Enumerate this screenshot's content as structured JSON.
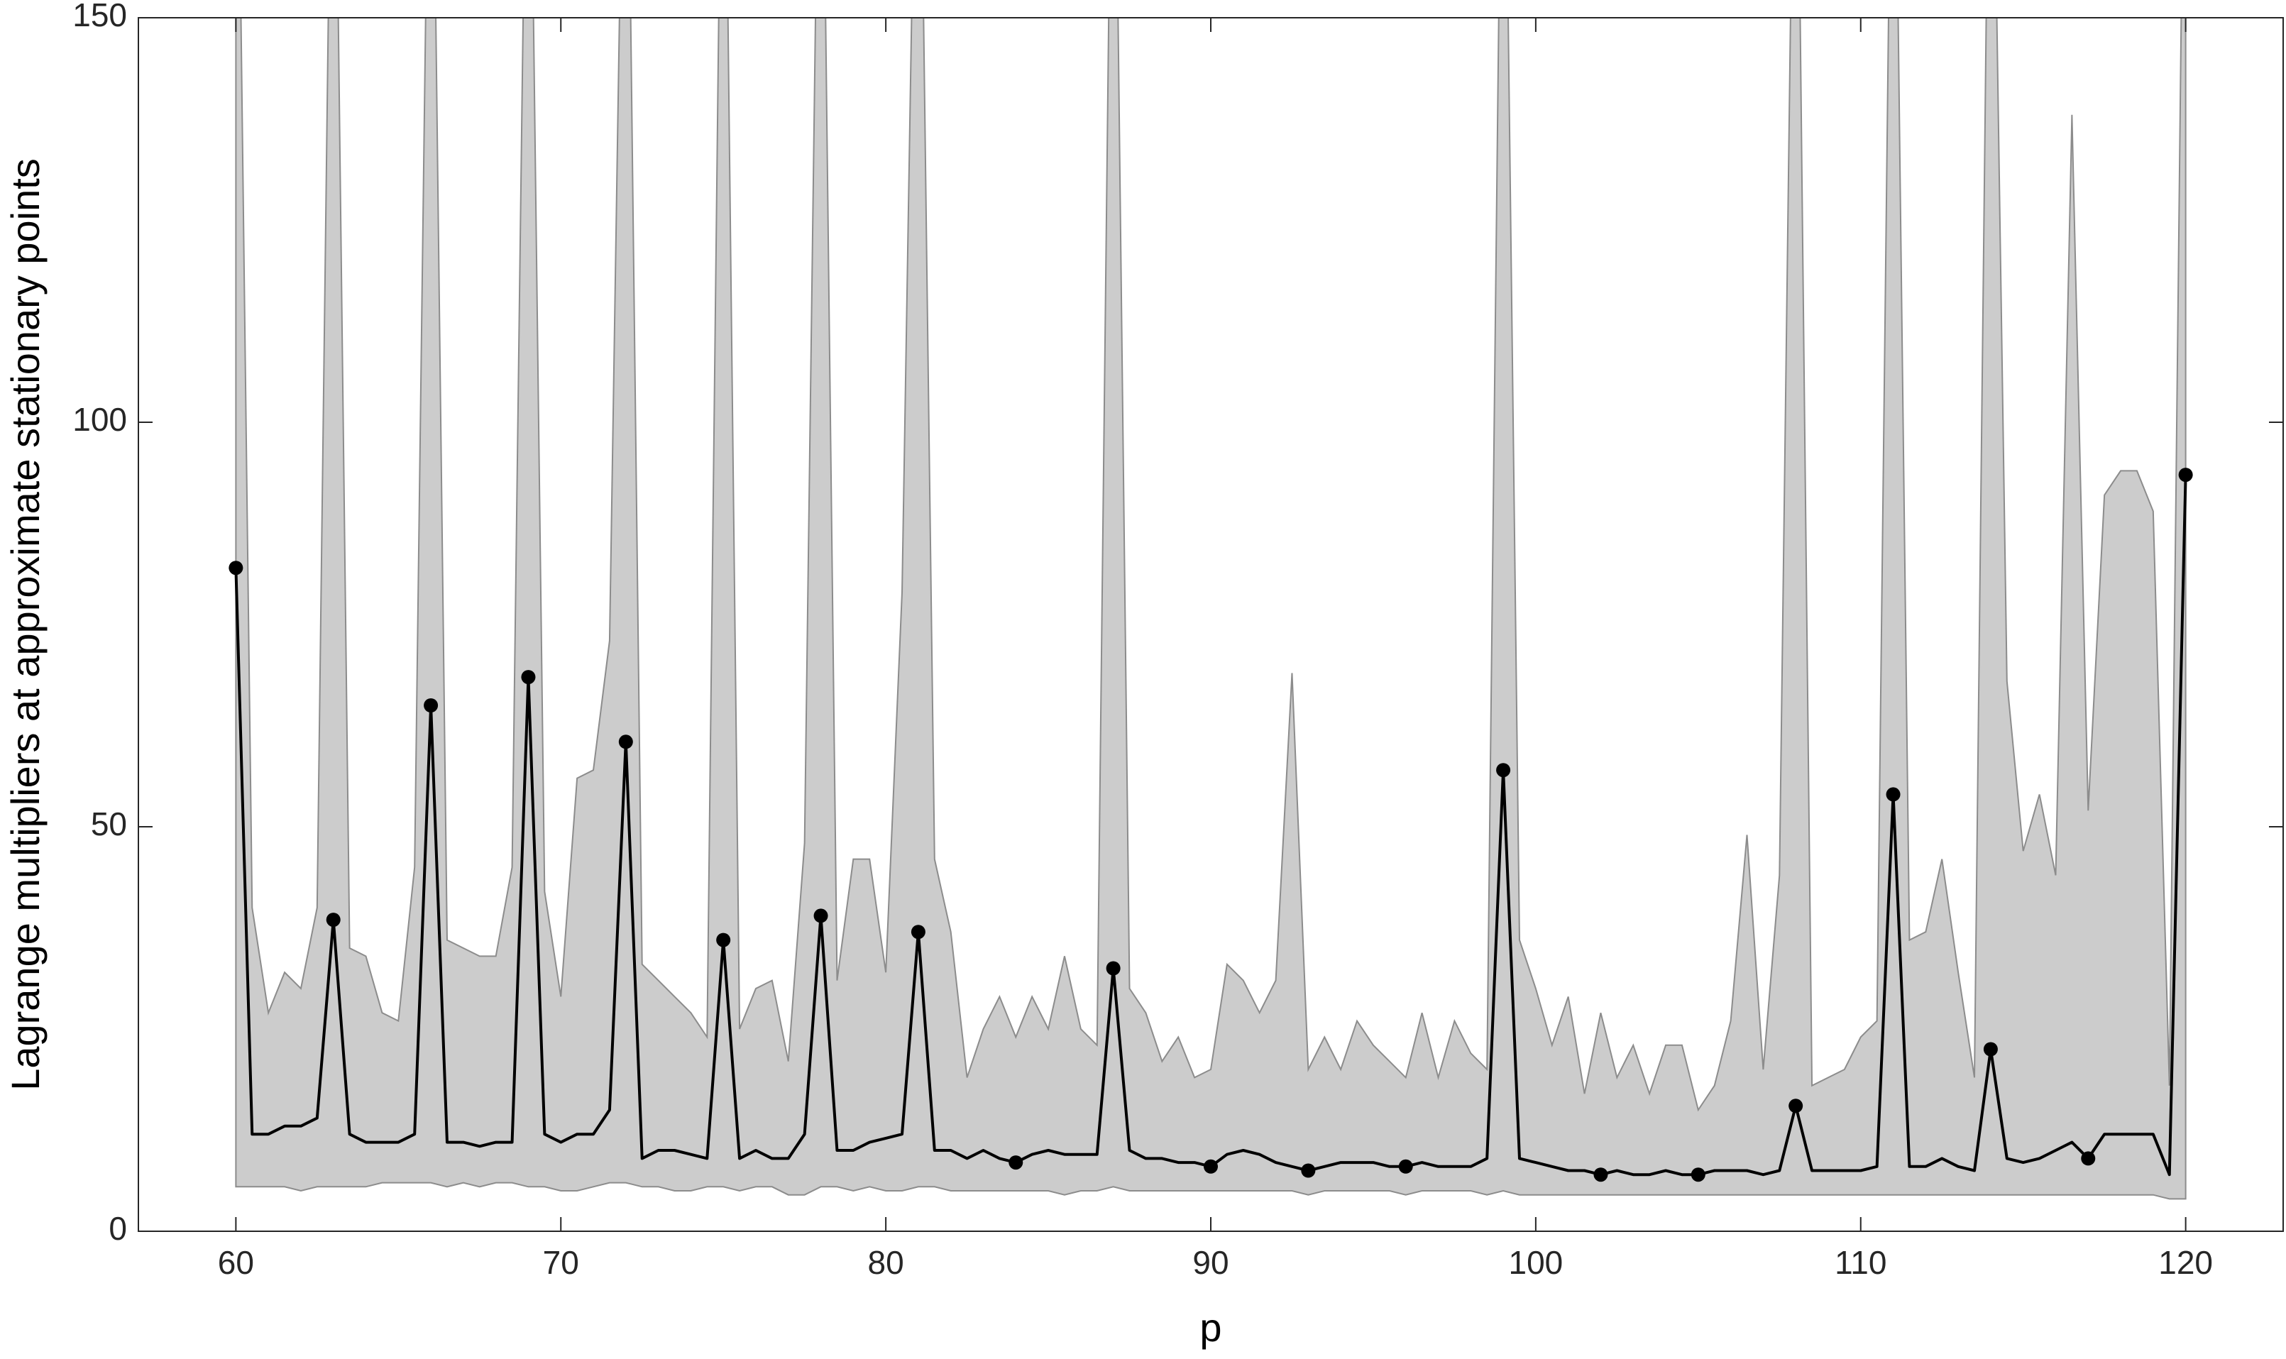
{
  "chart_data": {
    "type": "line",
    "xlabel": "p",
    "ylabel": "Lagrange multipliers at approximate stationary points",
    "xlim": [
      57,
      123
    ],
    "ylim": [
      0,
      150
    ],
    "xticks": [
      60,
      70,
      80,
      90,
      100,
      110,
      120
    ],
    "yticks": [
      0,
      50,
      100,
      150
    ],
    "x": [
      60,
      60.5,
      61,
      61.5,
      62,
      62.5,
      63,
      63.5,
      64,
      64.5,
      65,
      65.5,
      66,
      66.5,
      67,
      67.5,
      68,
      68.5,
      69,
      69.5,
      70,
      70.5,
      71,
      71.5,
      72,
      72.5,
      73,
      73.5,
      74,
      74.5,
      75,
      75.5,
      76,
      76.5,
      77,
      77.5,
      78,
      78.5,
      79,
      79.5,
      80,
      80.5,
      81,
      81.5,
      82,
      82.5,
      83,
      83.5,
      84,
      84.5,
      85,
      85.5,
      86,
      86.5,
      87,
      87.5,
      88,
      88.5,
      89,
      89.5,
      90,
      90.5,
      91,
      91.5,
      92,
      92.5,
      93,
      93.5,
      94,
      94.5,
      95,
      95.5,
      96,
      96.5,
      97,
      97.5,
      98,
      98.5,
      99,
      99.5,
      100,
      100.5,
      101,
      101.5,
      102,
      102.5,
      103,
      103.5,
      104,
      104.5,
      105,
      105.5,
      106,
      106.5,
      107,
      107.5,
      108,
      108.5,
      109,
      109.5,
      110,
      110.5,
      111,
      111.5,
      112,
      112.5,
      113,
      113.5,
      114,
      114.5,
      115,
      115.5,
      116,
      116.5,
      117,
      117.5,
      118,
      118.5,
      119,
      119.5,
      120
    ],
    "band": {
      "color": "#cccccc",
      "upper": [
        200,
        40,
        27,
        32,
        30,
        40,
        200,
        35,
        34,
        27,
        26,
        45,
        200,
        36,
        35,
        34,
        34,
        45,
        200,
        42,
        29,
        56,
        57,
        73,
        200,
        33,
        31,
        29,
        27,
        24,
        200,
        25,
        30,
        31,
        21,
        48,
        200,
        31,
        46,
        46,
        32,
        79,
        200,
        46,
        37,
        19,
        25,
        29,
        24,
        29,
        25,
        34,
        25,
        23,
        200,
        30,
        27,
        21,
        24,
        19,
        20,
        33,
        31,
        27,
        31,
        69,
        20,
        24,
        20,
        26,
        23,
        21,
        19,
        27,
        19,
        26,
        22,
        20,
        200,
        36,
        30,
        23,
        29,
        17,
        27,
        19,
        23,
        17,
        23,
        23,
        15,
        18,
        26,
        49,
        20,
        44,
        200,
        18,
        19,
        20,
        24,
        26,
        200,
        36,
        37,
        46,
        32,
        19,
        200,
        68,
        47,
        54,
        44,
        138,
        52,
        91,
        94,
        94,
        89,
        18,
        200
      ],
      "lower": [
        5.5,
        5.5,
        5.5,
        5.5,
        5,
        5.5,
        5.5,
        5.5,
        5.5,
        6,
        6,
        6,
        6,
        5.5,
        6,
        5.5,
        6,
        6,
        5.5,
        5.5,
        5,
        5,
        5.5,
        6,
        6,
        5.5,
        5.5,
        5,
        5,
        5.5,
        5.5,
        5,
        5.5,
        5.5,
        4.5,
        4.5,
        5.5,
        5.5,
        5,
        5.5,
        5,
        5,
        5.5,
        5.5,
        5,
        5,
        5,
        5,
        5,
        5,
        5,
        4.5,
        5,
        5,
        5.5,
        5,
        5,
        5,
        5,
        5,
        5,
        5,
        5,
        5,
        5,
        5,
        4.5,
        5,
        5,
        5,
        5,
        5,
        4.5,
        5,
        5,
        5,
        5,
        4.5,
        5,
        4.5,
        4.5,
        4.5,
        4.5,
        4.5,
        4.5,
        4.5,
        4.5,
        4.5,
        4.5,
        4.5,
        4.5,
        4.5,
        4.5,
        4.5,
        4.5,
        4.5,
        4.5,
        4.5,
        4.5,
        4.5,
        4.5,
        4.5,
        4.5,
        4.5,
        4.5,
        4.5,
        4.5,
        4.5,
        4.5,
        4.5,
        4.5,
        4.5,
        4.5,
        4.5,
        4.5,
        4.5,
        4.5,
        4.5,
        4.5,
        4,
        4
      ]
    },
    "series": [
      {
        "color": "#000000",
        "values": [
          82,
          12,
          12,
          13,
          13,
          14,
          38.5,
          12,
          11,
          11,
          11,
          12,
          65,
          11,
          11,
          10.5,
          11,
          11,
          68.5,
          12,
          11,
          12,
          12,
          15,
          60.5,
          9,
          10,
          10,
          9.5,
          9,
          36,
          9,
          10,
          9,
          9,
          12,
          39,
          10,
          10,
          11,
          11.5,
          12,
          37,
          10,
          10,
          9,
          10,
          9,
          8.5,
          9.5,
          10,
          9.5,
          9.5,
          9.5,
          32.5,
          10,
          9,
          9,
          8.5,
          8.5,
          8,
          9.5,
          10,
          9.5,
          8.5,
          8,
          7.5,
          8,
          8.5,
          8.5,
          8.5,
          8,
          8,
          8.5,
          8,
          8,
          8,
          9,
          57,
          9,
          8.5,
          8,
          7.5,
          7.5,
          7,
          7.5,
          7,
          7,
          7.5,
          7,
          7,
          7.5,
          7.5,
          7.5,
          7,
          7.5,
          15.5,
          7.5,
          7.5,
          7.5,
          7.5,
          8,
          54,
          8,
          8,
          9,
          8,
          7.5,
          22.5,
          9,
          8.5,
          9,
          10,
          11,
          9,
          12,
          12,
          12,
          12,
          7,
          93.5
        ]
      }
    ],
    "markers": {
      "color": "#000000",
      "x": [
        60,
        63,
        66,
        69,
        72,
        75,
        78,
        81,
        84,
        87,
        90,
        93,
        96,
        99,
        102,
        105,
        108,
        111,
        114,
        117,
        120
      ],
      "values": [
        82,
        38.5,
        65,
        68.5,
        60.5,
        36,
        39,
        37,
        8.5,
        32.5,
        8,
        7.5,
        8,
        57,
        7,
        7,
        15.5,
        54,
        22.5,
        9,
        93.5
      ]
    }
  }
}
